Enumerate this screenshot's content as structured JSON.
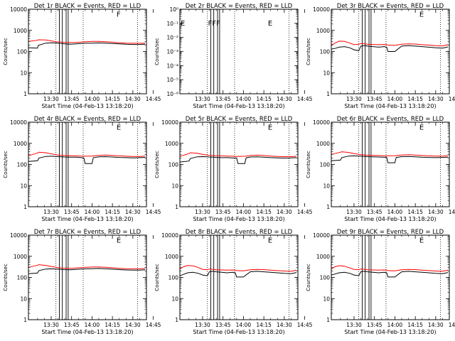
{
  "figure": {
    "xlabel": "Start Time (04-Feb-13 13:18:20)",
    "ylabel": "Counts/sec",
    "x_ticks": [
      "13:30",
      "13:45",
      "14:00",
      "14:15",
      "14:30",
      "14:45"
    ]
  },
  "colors": {
    "events": "#000000",
    "lld": "#ff0000",
    "background": "#ffffff"
  },
  "chart_data": [
    {
      "type": "line",
      "title": "Det 1r BLACK = Events, RED = LLD",
      "xlabel": "Start Time (04-Feb-13 13:18:20)",
      "ylabel": "Counts/sec",
      "yscale": "log",
      "xlim_minutes": [
        13.3,
        100
      ],
      "ylim": [
        1,
        10000
      ],
      "y_ticks": [
        "1",
        "10",
        "100",
        "1000",
        "10000"
      ],
      "flag_labels": [
        {
          "text": "F",
          "x_minutes": 78,
          "y": 9000
        }
      ],
      "grid": false,
      "legend": "none",
      "x_minutes": [
        13.3,
        20,
        20.5,
        26,
        30,
        33.5,
        35,
        38,
        40,
        44,
        48,
        52,
        55,
        60,
        65,
        70,
        75,
        80,
        85,
        90,
        95,
        99
      ],
      "series": [
        {
          "name": "Events",
          "color": "#000000",
          "values": [
            150,
            145,
            195,
            250,
            260,
            255,
            250,
            240,
            230,
            220,
            230,
            240,
            245,
            250,
            255,
            250,
            240,
            230,
            220,
            215,
            215,
            220
          ]
        },
        {
          "name": "LLD",
          "color": "#ff0000",
          "values": [
            300,
            340,
            360,
            350,
            320,
            290,
            285,
            280,
            270,
            265,
            270,
            280,
            290,
            300,
            300,
            290,
            275,
            260,
            250,
            245,
            245,
            250
          ]
        }
      ]
    },
    {
      "type": "line",
      "title": "Det 2r BLACK = Events, RED = LLD",
      "xlabel": "Start Time (04-Feb-13 13:18:20)",
      "ylabel": "Counts/sec",
      "yscale": "log",
      "xlim_minutes": [
        13.3,
        100
      ],
      "ylim": [
        1e-06,
        1
      ],
      "y_ticks": [
        "10⁻⁶",
        "10⁻⁵",
        "10⁻⁴",
        "10⁻³",
        "10⁻²",
        "10⁻¹",
        "10⁰"
      ],
      "flag_labels": [
        {
          "text": "E",
          "x_minutes": 13.8,
          "y": 0.2
        },
        {
          "text": "F",
          "x_minutes": 34,
          "y": 0.2
        },
        {
          "text": "F",
          "x_minutes": 37,
          "y": 0.2
        },
        {
          "text": "F",
          "x_minutes": 40,
          "y": 0.2
        },
        {
          "text": "E",
          "x_minutes": 78,
          "y": 0.2
        }
      ],
      "grid": false,
      "legend": "none",
      "x_minutes": [],
      "series": []
    },
    {
      "type": "line",
      "title": "Det 3r BLACK = Events, RED = LLD",
      "xlabel": "Start Time (04-Feb-13 13:18:20)",
      "ylabel": "Counts/sec",
      "yscale": "log",
      "xlim_minutes": [
        13.3,
        100
      ],
      "ylim": [
        1,
        10000
      ],
      "y_ticks": [
        "1",
        "10",
        "100",
        "1000",
        "10000"
      ],
      "flag_labels": [
        {
          "text": "E",
          "x_minutes": 78,
          "y": 9000
        }
      ],
      "grid": false,
      "legend": "none",
      "x_minutes": [
        13.3,
        16,
        19,
        23,
        27,
        30,
        33.5,
        35,
        38,
        40,
        44,
        48,
        52,
        54,
        55,
        60,
        65,
        70,
        75,
        80,
        85,
        90,
        95,
        99
      ],
      "series": [
        {
          "name": "Events",
          "color": "#000000",
          "values": [
            130,
            140,
            160,
            170,
            150,
            120,
            110,
            180,
            190,
            180,
            170,
            160,
            170,
            160,
            100,
            100,
            180,
            190,
            180,
            170,
            160,
            150,
            145,
            165
          ]
        },
        {
          "name": "LLD",
          "color": "#ff0000",
          "values": [
            200,
            250,
            310,
            300,
            250,
            210,
            220,
            240,
            230,
            220,
            215,
            210,
            215,
            210,
            200,
            195,
            220,
            230,
            225,
            210,
            200,
            190,
            185,
            210
          ]
        }
      ]
    },
    {
      "type": "line",
      "title": "Det 4r BLACK = Events, RED = LLD",
      "xlabel": "Start Time (04-Feb-13 13:18:20)",
      "ylabel": "Counts/sec",
      "yscale": "log",
      "xlim_minutes": [
        13.3,
        100
      ],
      "ylim": [
        1,
        10000
      ],
      "y_ticks": [
        "1",
        "10",
        "100",
        "1000",
        "10000"
      ],
      "flag_labels": [
        {
          "text": "E",
          "x_minutes": 78,
          "y": 9000
        }
      ],
      "grid": false,
      "legend": "none",
      "x_minutes": [
        13.3,
        20,
        21,
        26,
        30,
        33.5,
        35,
        38,
        40,
        44,
        48,
        52,
        54,
        55,
        60,
        61,
        65,
        70,
        75,
        80,
        85,
        90,
        95,
        99
      ],
      "series": [
        {
          "name": "Events",
          "color": "#000000",
          "values": [
            140,
            150,
            200,
            240,
            245,
            240,
            235,
            230,
            225,
            220,
            220,
            210,
            205,
            110,
            110,
            210,
            230,
            235,
            225,
            215,
            210,
            205,
            210,
            215
          ]
        },
        {
          "name": "LLD",
          "color": "#ff0000",
          "values": [
            260,
            350,
            380,
            360,
            320,
            290,
            280,
            270,
            265,
            260,
            255,
            250,
            245,
            245,
            250,
            255,
            270,
            280,
            270,
            255,
            245,
            240,
            240,
            250
          ]
        }
      ]
    },
    {
      "type": "line",
      "title": "Det 5r BLACK = Events, RED = LLD",
      "xlabel": "Start Time (04-Feb-13 13:18:20)",
      "ylabel": "Counts/sec",
      "yscale": "log",
      "xlim_minutes": [
        13.3,
        100
      ],
      "ylim": [
        1,
        10000
      ],
      "y_ticks": [
        "1",
        "10",
        "100",
        "1000",
        "10000"
      ],
      "flag_labels": [
        {
          "text": "E",
          "x_minutes": 78,
          "y": 9000
        }
      ],
      "grid": false,
      "legend": "none",
      "x_minutes": [
        13.3,
        20,
        21,
        26,
        30,
        33.5,
        35,
        38,
        40,
        44,
        48,
        52,
        55,
        56,
        61,
        62,
        65,
        70,
        75,
        80,
        85,
        90,
        95,
        99
      ],
      "series": [
        {
          "name": "Events",
          "color": "#000000",
          "values": [
            130,
            145,
            190,
            230,
            235,
            230,
            225,
            220,
            215,
            210,
            210,
            205,
            200,
            110,
            110,
            205,
            225,
            230,
            220,
            210,
            205,
            200,
            205,
            210
          ]
        },
        {
          "name": "LLD",
          "color": "#ff0000",
          "values": [
            240,
            330,
            360,
            340,
            300,
            280,
            270,
            265,
            260,
            255,
            250,
            245,
            240,
            240,
            245,
            250,
            265,
            275,
            265,
            250,
            240,
            235,
            235,
            245
          ]
        }
      ]
    },
    {
      "type": "line",
      "title": "Det 6r BLACK = Events, RED = LLD",
      "xlabel": "Start Time (04-Feb-13 13:18:20)",
      "ylabel": "Counts/sec",
      "yscale": "log",
      "xlim_minutes": [
        13.3,
        100
      ],
      "ylim": [
        1,
        10000
      ],
      "y_ticks": [
        "1",
        "10",
        "100",
        "1000",
        "10000"
      ],
      "flag_labels": [
        {
          "text": "E",
          "x_minutes": 78,
          "y": 9000
        }
      ],
      "grid": false,
      "legend": "none",
      "x_minutes": [
        13.3,
        20,
        21,
        26,
        30,
        33.5,
        35,
        38,
        40,
        44,
        48,
        52,
        54,
        55,
        60,
        61,
        65,
        70,
        75,
        80,
        85,
        90,
        95,
        99
      ],
      "series": [
        {
          "name": "Events",
          "color": "#000000",
          "values": [
            150,
            160,
            210,
            250,
            255,
            250,
            245,
            240,
            235,
            230,
            225,
            220,
            215,
            120,
            120,
            215,
            235,
            240,
            230,
            220,
            215,
            210,
            215,
            220
          ]
        },
        {
          "name": "LLD",
          "color": "#ff0000",
          "values": [
            300,
            380,
            400,
            370,
            330,
            300,
            290,
            280,
            275,
            270,
            265,
            260,
            255,
            255,
            260,
            265,
            280,
            290,
            280,
            265,
            255,
            250,
            250,
            260
          ]
        }
      ]
    },
    {
      "type": "line",
      "title": "Det 7r BLACK = Events, RED = LLD",
      "xlabel": "Start Time (04-Feb-13 13:18:20)",
      "ylabel": "Counts/sec",
      "yscale": "log",
      "xlim_minutes": [
        13.3,
        100
      ],
      "ylim": [
        1,
        10000
      ],
      "y_ticks": [
        "1",
        "10",
        "100",
        "1000",
        "10000"
      ],
      "flag_labels": [
        {
          "text": "E",
          "x_minutes": 78,
          "y": 9000
        }
      ],
      "grid": false,
      "legend": "none",
      "x_minutes": [
        13.3,
        20,
        21,
        26,
        30,
        33.5,
        35,
        38,
        40,
        44,
        48,
        52,
        55,
        60,
        65,
        70,
        75,
        80,
        85,
        90,
        95,
        99
      ],
      "series": [
        {
          "name": "Events",
          "color": "#000000",
          "values": [
            150,
            160,
            210,
            250,
            255,
            250,
            245,
            240,
            235,
            230,
            240,
            250,
            255,
            260,
            265,
            255,
            245,
            235,
            225,
            220,
            222,
            230
          ]
        },
        {
          "name": "LLD",
          "color": "#ff0000",
          "values": [
            300,
            380,
            400,
            370,
            330,
            300,
            290,
            280,
            275,
            270,
            280,
            290,
            300,
            310,
            310,
            300,
            285,
            270,
            260,
            255,
            255,
            265
          ]
        }
      ]
    },
    {
      "type": "line",
      "title": "Det 8r BLACK = Events, RED = LLD",
      "xlabel": "Start Time (04-Feb-13 13:18:20)",
      "ylabel": "Counts/sec",
      "yscale": "log",
      "xlim_minutes": [
        13.3,
        100
      ],
      "ylim": [
        1,
        10000
      ],
      "y_ticks": [
        "1",
        "10",
        "100",
        "1000",
        "10000"
      ],
      "flag_labels": [
        {
          "text": "E",
          "x_minutes": 78,
          "y": 9000
        }
      ],
      "grid": false,
      "legend": "none",
      "x_minutes": [
        13.3,
        16,
        19,
        23,
        27,
        30,
        33.5,
        35,
        38,
        40,
        44,
        48,
        52,
        54,
        55,
        60,
        65,
        70,
        75,
        80,
        85,
        90,
        95,
        99
      ],
      "series": [
        {
          "name": "Events",
          "color": "#000000",
          "values": [
            120,
            140,
            165,
            175,
            155,
            130,
            120,
            185,
            195,
            185,
            175,
            165,
            175,
            165,
            105,
            105,
            185,
            195,
            185,
            175,
            165,
            155,
            150,
            170
          ]
        },
        {
          "name": "LLD",
          "color": "#ff0000",
          "values": [
            250,
            320,
            370,
            350,
            290,
            240,
            230,
            250,
            240,
            230,
            225,
            220,
            225,
            220,
            210,
            205,
            230,
            240,
            235,
            220,
            210,
            200,
            195,
            220
          ]
        }
      ]
    },
    {
      "type": "line",
      "title": "Det 9r BLACK = Events, RED = LLD",
      "xlabel": "Start Time (04-Feb-13 13:18:20)",
      "ylabel": "Counts/sec",
      "yscale": "log",
      "xlim_minutes": [
        13.3,
        100
      ],
      "ylim": [
        1,
        10000
      ],
      "y_ticks": [
        "1",
        "10",
        "100",
        "1000",
        "10000"
      ],
      "flag_labels": [
        {
          "text": "E",
          "x_minutes": 78,
          "y": 9000
        }
      ],
      "grid": false,
      "legend": "none",
      "x_minutes": [
        13.3,
        16,
        19,
        23,
        27,
        30,
        33.5,
        35,
        38,
        40,
        44,
        48,
        52,
        54,
        55,
        60,
        65,
        70,
        75,
        80,
        85,
        90,
        95,
        99
      ],
      "series": [
        {
          "name": "Events",
          "color": "#000000",
          "values": [
            130,
            145,
            165,
            175,
            155,
            130,
            120,
            185,
            195,
            185,
            175,
            165,
            175,
            165,
            105,
            105,
            185,
            195,
            185,
            175,
            165,
            155,
            150,
            170
          ]
        },
        {
          "name": "LLD",
          "color": "#ff0000",
          "values": [
            250,
            320,
            360,
            340,
            280,
            240,
            230,
            250,
            240,
            230,
            225,
            220,
            225,
            220,
            210,
            205,
            230,
            240,
            235,
            220,
            210,
            200,
            195,
            220
          ]
        }
      ]
    }
  ]
}
